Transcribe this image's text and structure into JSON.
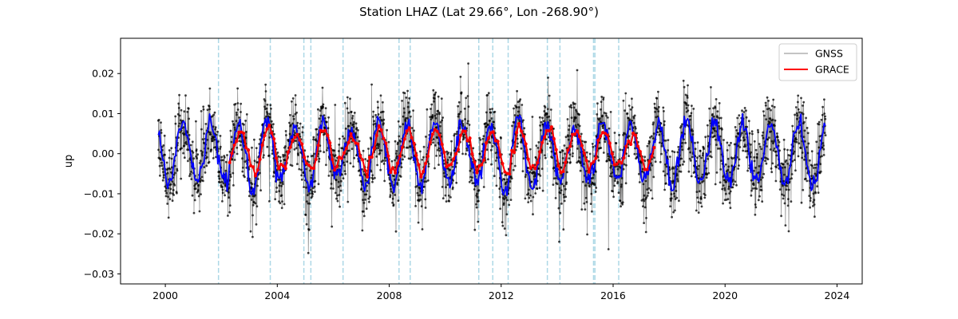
{
  "chart_data": {
    "type": "line",
    "title": "Station LHAZ (Lat 29.66°, Lon -268.90°)",
    "xlabel": "",
    "ylabel": "up",
    "xlim": [
      1998.4,
      2024.9
    ],
    "ylim": [
      -0.0325,
      0.0288
    ],
    "x_ticks": [
      2000,
      2004,
      2008,
      2012,
      2016,
      2020,
      2024
    ],
    "y_ticks": [
      0.02,
      0.01,
      0.0,
      -0.01,
      -0.02,
      -0.03
    ],
    "y_tick_labels": [
      "0.02",
      "0.01",
      "0.00",
      "−0.01",
      "−0.02",
      "−0.03"
    ],
    "grid": false,
    "legend_position": "top-right",
    "series": [
      {
        "name": "GNSS",
        "color": "#000000",
        "style": "thin gray line with black dot markers",
        "x_start": 1999.75,
        "x_end": 2023.6,
        "seasonal_amplitude": 0.008,
        "peak_phase": 0.63,
        "noise_sd": 0.0045
      },
      {
        "name": "",
        "color": "#0000ff",
        "style": "smoothed line",
        "x_start": 1999.75,
        "x_end": 2023.6
      },
      {
        "name": "GRACE",
        "color": "#ff0000",
        "style": "line with dot markers",
        "x_start": 2002.3,
        "x_end": 2017.5
      }
    ],
    "event_lines": {
      "color": "#add8e6",
      "style": "dashed",
      "x": [
        2001.9,
        2003.75,
        2004.95,
        2005.2,
        2006.35,
        2008.35,
        2008.75,
        2011.2,
        2011.7,
        2012.25,
        2013.65,
        2014.1,
        2015.3,
        2015.35,
        2016.2
      ]
    }
  }
}
